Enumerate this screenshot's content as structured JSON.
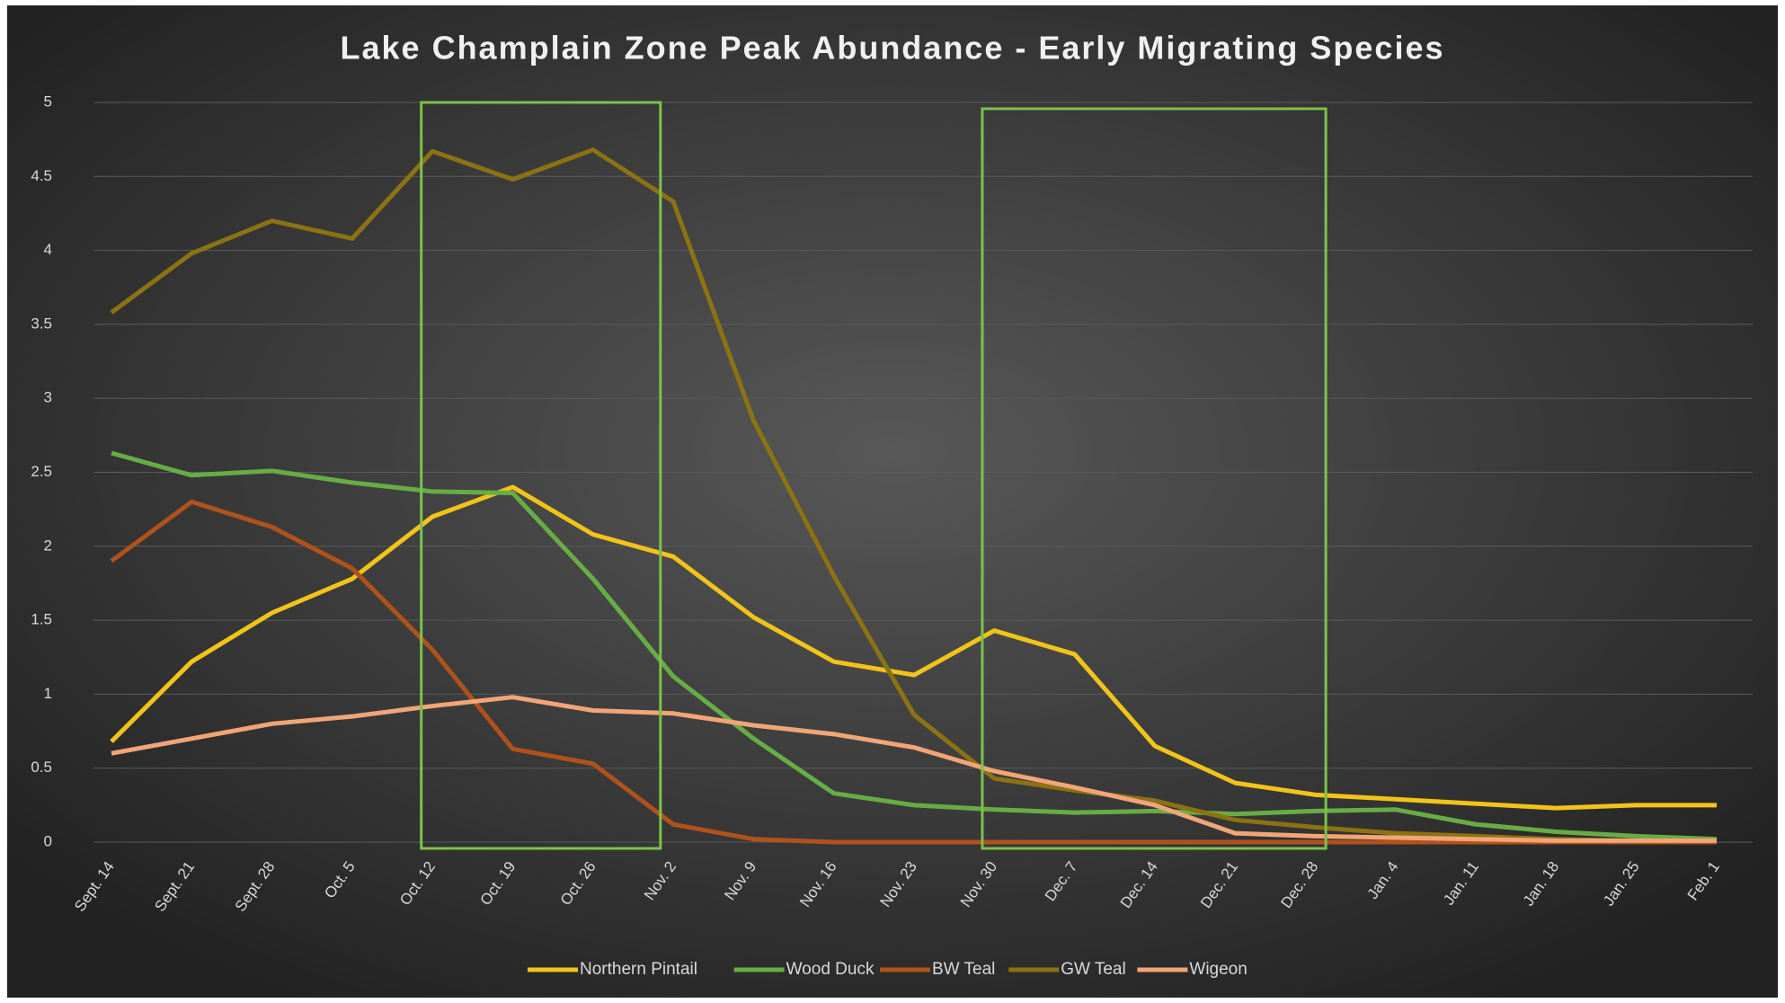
{
  "chart_data": {
    "type": "line",
    "title": "Lake Champlain Zone Peak Abundance - Early Migrating Species",
    "categories": [
      "Sept. 14",
      "Sept. 21",
      "Sept. 28",
      "Oct. 5",
      "Oct. 12",
      "Oct. 19",
      "Oct. 26",
      "Nov. 2",
      "Nov. 9",
      "Nov. 16",
      "Nov. 23",
      "Nov. 30",
      "Dec. 7",
      "Dec. 14",
      "Dec. 21",
      "Dec. 28",
      "Jan. 4",
      "Jan. 11",
      "Jan. 18",
      "Jan. 25",
      "Feb. 1"
    ],
    "series": [
      {
        "name": "Northern Pintail",
        "color": "#f2c41a",
        "values": [
          0.68,
          1.22,
          1.55,
          1.78,
          2.2,
          2.4,
          2.08,
          1.93,
          1.52,
          1.22,
          1.13,
          1.43,
          1.27,
          0.65,
          0.4,
          0.32,
          0.29,
          0.26,
          0.23,
          0.25,
          0.25
        ]
      },
      {
        "name": "Wood Duck",
        "color": "#67ad45",
        "values": [
          2.63,
          2.48,
          2.51,
          2.43,
          2.37,
          2.36,
          1.78,
          1.12,
          0.7,
          0.33,
          0.25,
          0.22,
          0.2,
          0.21,
          0.19,
          0.21,
          0.22,
          0.12,
          0.07,
          0.04,
          0.02
        ]
      },
      {
        "name": "BW Teal",
        "color": "#b0521c",
        "values": [
          1.9,
          2.3,
          2.13,
          1.85,
          1.3,
          0.63,
          0.53,
          0.12,
          0.02,
          0,
          0,
          0,
          0,
          0,
          0,
          0,
          0,
          0,
          0,
          0,
          0
        ]
      },
      {
        "name": "GW Teal",
        "color": "#8c7212",
        "values": [
          3.58,
          3.98,
          4.2,
          4.08,
          4.67,
          4.48,
          4.68,
          4.33,
          2.85,
          1.8,
          0.86,
          0.43,
          0.35,
          0.28,
          0.15,
          0.1,
          0.06,
          0.04,
          0.02,
          0.01,
          0.01
        ]
      },
      {
        "name": "Wigeon",
        "color": "#f2a577",
        "values": [
          0.6,
          0.7,
          0.8,
          0.85,
          0.92,
          0.98,
          0.89,
          0.87,
          0.79,
          0.73,
          0.64,
          0.48,
          0.37,
          0.25,
          0.06,
          0.04,
          0.03,
          0.02,
          0.01,
          0.01,
          0.01
        ]
      }
    ],
    "ylim": [
      0,
      5
    ],
    "yticks": [
      0,
      0.5,
      1,
      1.5,
      2,
      2.5,
      3,
      3.5,
      4,
      4.5,
      5
    ],
    "grid": true,
    "legend": "bottom"
  }
}
